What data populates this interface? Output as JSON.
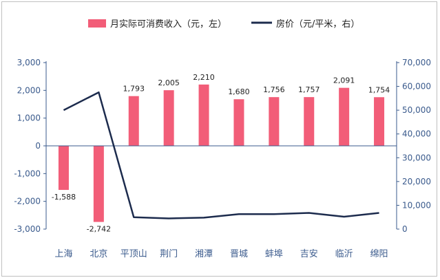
{
  "chart_data": {
    "type": "bar+line",
    "categories": [
      "上海",
      "北京",
      "平顶山",
      "荆门",
      "湘潭",
      "晋城",
      "蚌埠",
      "吉安",
      "临沂",
      "绵阳"
    ],
    "series": [
      {
        "name": "月实际可消费收入（元，左）",
        "type": "bar",
        "axis": "left",
        "color": "#f25d78",
        "values": [
          -1588,
          -2742,
          1793,
          2005,
          2210,
          1680,
          1756,
          1757,
          2091,
          1754
        ],
        "labels": [
          "-1,588",
          "-2,742",
          "1,793",
          "2,005",
          "2,210",
          "1,680",
          "1,756",
          "1,757",
          "2,091",
          "1,754"
        ]
      },
      {
        "name": "房价（元/平米，右）",
        "type": "line",
        "axis": "right",
        "color": "#1c2b4d",
        "values": [
          50000,
          57500,
          5000,
          4500,
          4800,
          6300,
          6300,
          6800,
          5200,
          6800
        ]
      }
    ],
    "y_left": {
      "range": [
        -3000,
        3000
      ],
      "ticks": [
        3000,
        2000,
        1000,
        0,
        -1000,
        -2000,
        -3000
      ],
      "tick_labels": [
        "3,000",
        "2,000",
        "1,000",
        "0",
        "-1,000",
        "-2,000",
        "-3,000"
      ]
    },
    "y_right": {
      "range": [
        0,
        70000
      ],
      "ticks": [
        70000,
        60000,
        50000,
        40000,
        30000,
        20000,
        10000,
        0
      ],
      "tick_labels": [
        "70,000",
        "60,000",
        "50,000",
        "40,000",
        "30,000",
        "20,000",
        "10,000",
        "0"
      ]
    },
    "legend_position": "top",
    "grid": false
  }
}
